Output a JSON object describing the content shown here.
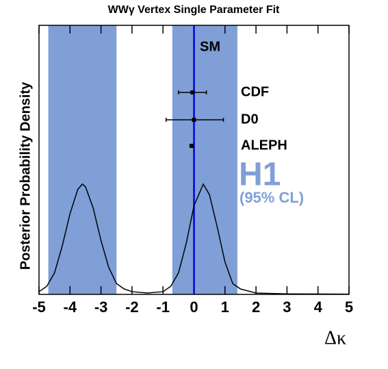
{
  "chart_data": {
    "type": "line",
    "title": "WWγ Vertex Single Parameter Fit",
    "x_label": "Δκ",
    "y_label": "Posterior Probability Density",
    "xlim": [
      -5,
      5
    ],
    "xticks": [
      -5,
      -4,
      -3,
      -2,
      -1,
      0,
      1,
      2,
      3,
      4,
      5
    ],
    "ylim": [
      0,
      1
    ],
    "series": [
      {
        "color": "#000000",
        "x": [
          -5,
          -4.75,
          -4.5,
          -4.25,
          -4,
          -3.75,
          -3.6,
          -3.5,
          -3.25,
          -3,
          -2.75,
          -2.5,
          -2.25,
          -2,
          -1.5,
          -1,
          -0.75,
          -0.5,
          -0.25,
          0,
          0.3,
          0.5,
          0.75,
          1,
          1.25,
          1.5,
          2,
          3,
          5
        ],
        "values": [
          0.01,
          0.03,
          0.08,
          0.18,
          0.3,
          0.39,
          0.41,
          0.4,
          0.32,
          0.2,
          0.1,
          0.04,
          0.02,
          0.01,
          0.005,
          0.01,
          0.03,
          0.08,
          0.19,
          0.33,
          0.41,
          0.37,
          0.25,
          0.12,
          0.04,
          0.02,
          0.005,
          0.002,
          0.001
        ]
      }
    ],
    "bands": [
      {
        "from": -4.7,
        "to": -2.5
      },
      {
        "from": -0.7,
        "to": 1.4
      }
    ],
    "band_color": "#7f9fd6",
    "reference": {
      "label": "SM",
      "value": 0,
      "color": "#0000dd"
    },
    "measurements": [
      {
        "name": "CDF",
        "value": -0.05,
        "low": -0.5,
        "high": 0.4
      },
      {
        "name": "D0",
        "value": 0.0,
        "low": -0.9,
        "high": 0.95
      },
      {
        "name": "ALEPH",
        "value": -0.08,
        "low": -0.1,
        "high": -0.06
      }
    ],
    "result": {
      "name": "H1",
      "note": "(95% CL)",
      "color": "#809fd6"
    }
  }
}
